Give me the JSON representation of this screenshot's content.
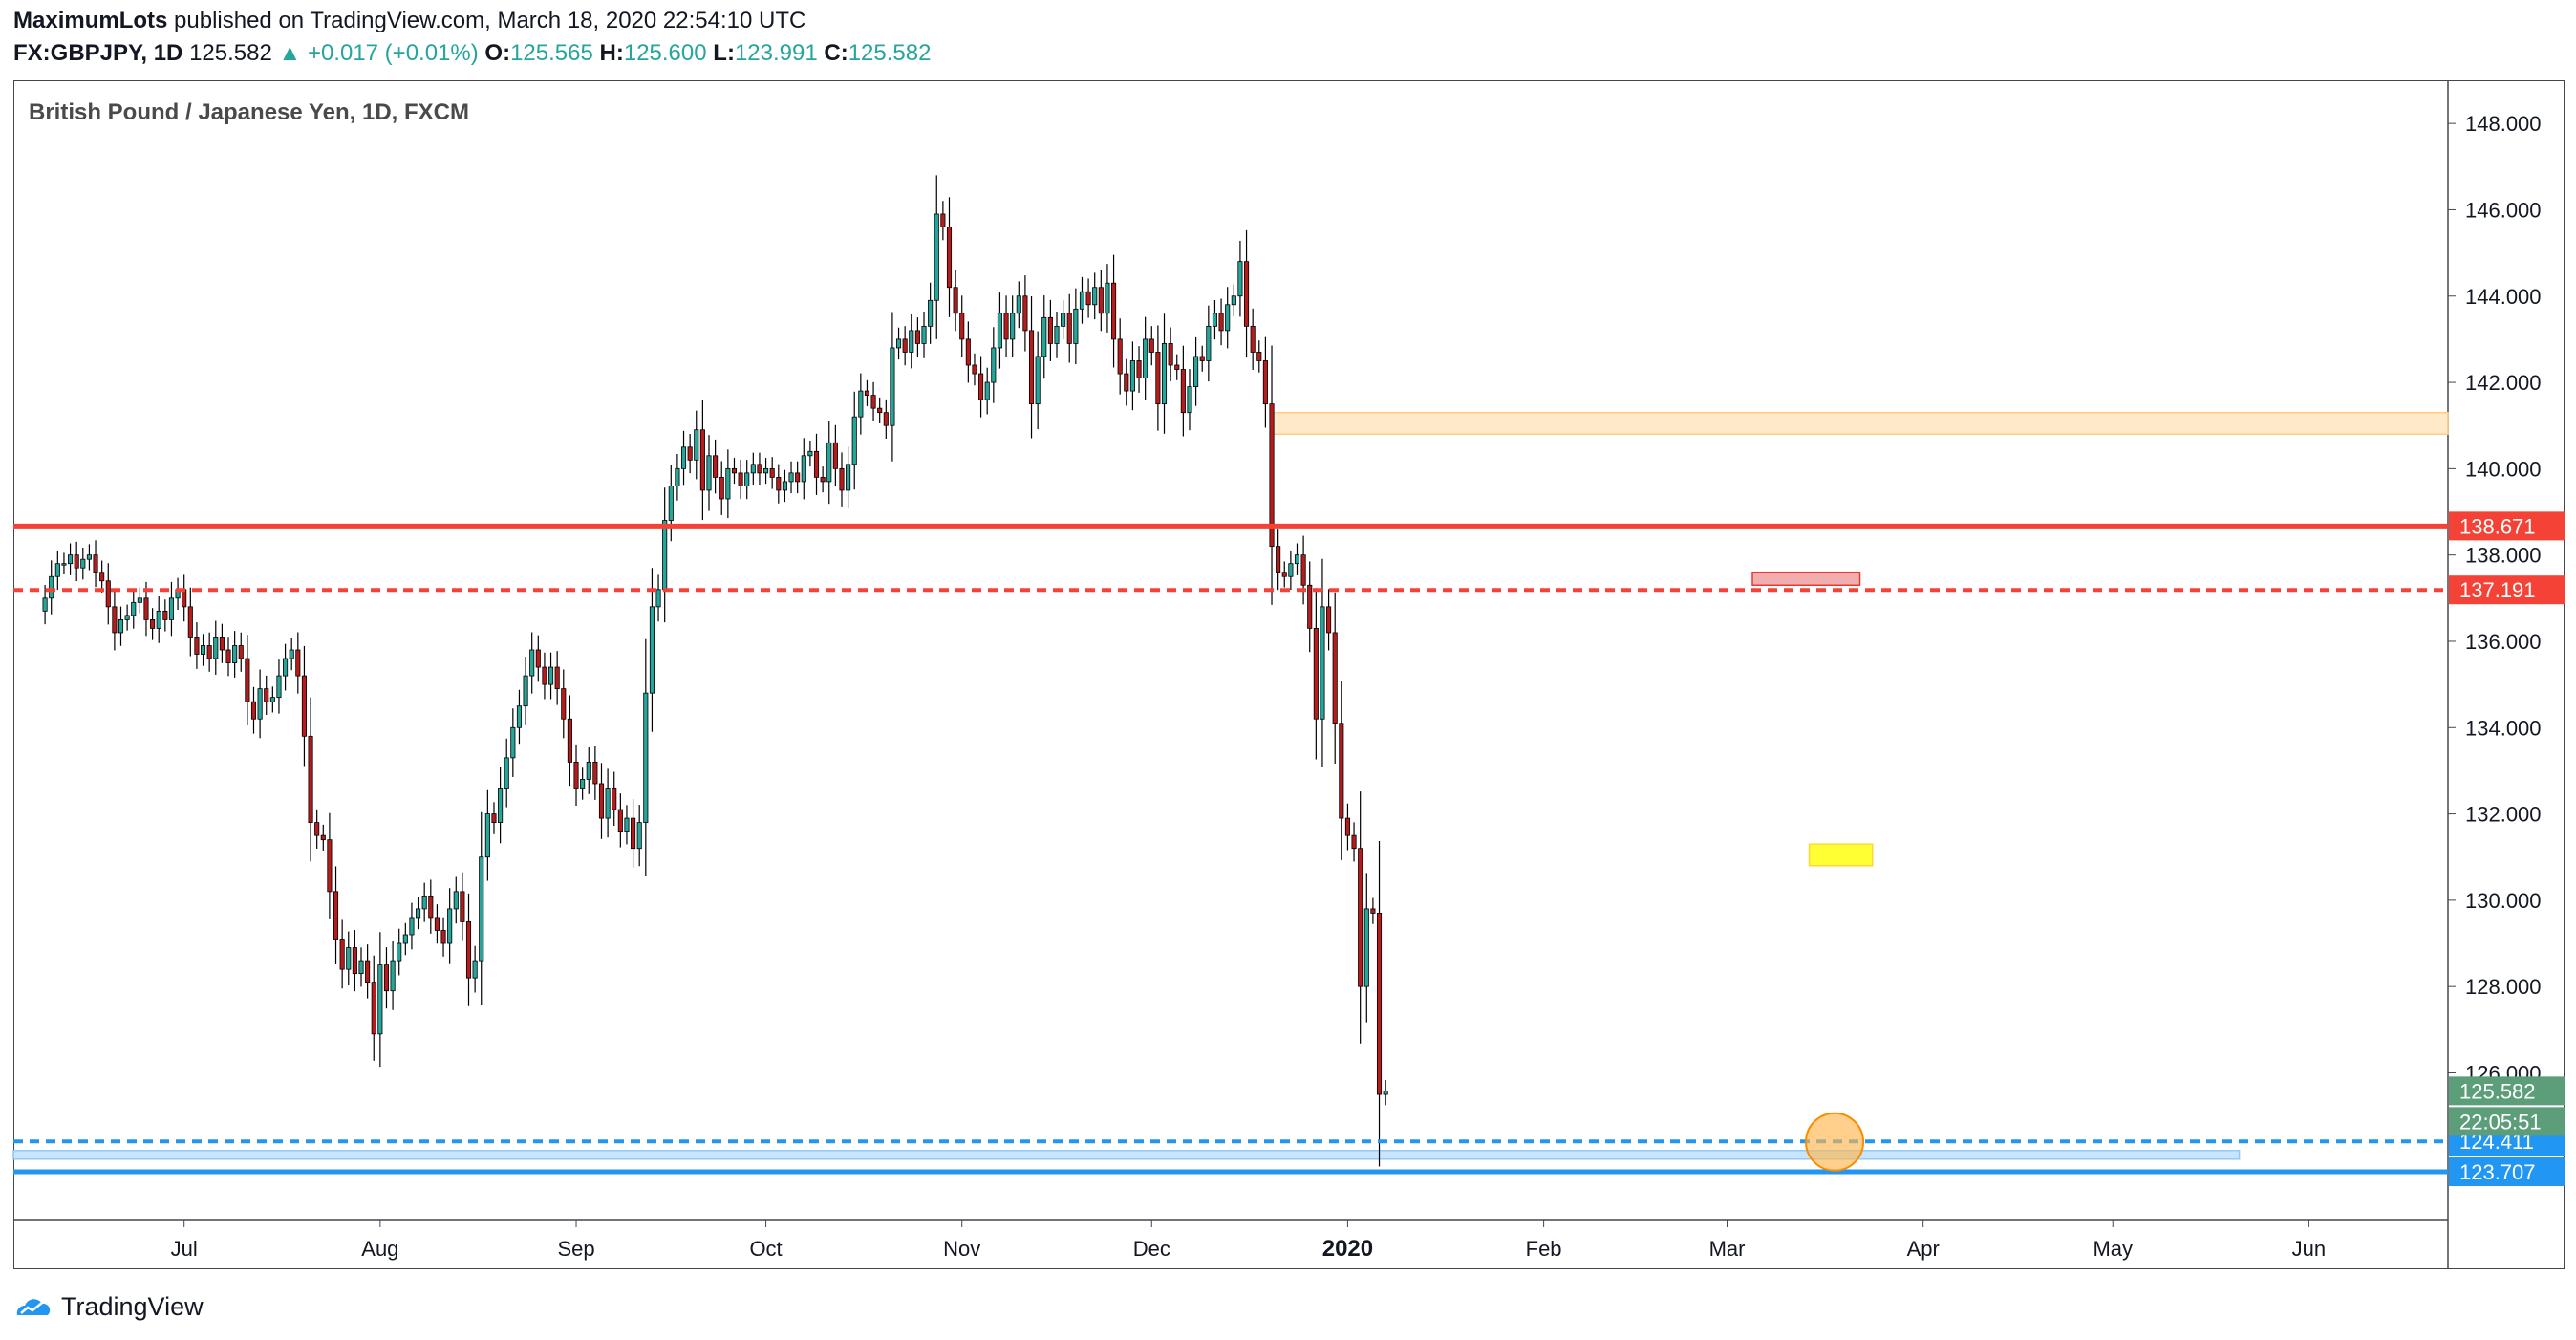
{
  "header": {
    "author": "MaximumLots",
    "published_text": "published on TradingView.com, March 18, 2020 22:54:10 UTC",
    "symbol": "FX:GBPJPY, 1D",
    "last": "125.582",
    "change": "+0.017 (+0.01%)",
    "o_label": "O:",
    "o": "125.565",
    "h_label": "H:",
    "h": "125.600",
    "l_label": "L:",
    "l": "123.991",
    "c_label": "C:",
    "c": "125.582"
  },
  "chart_title": "British Pound / Japanese Yen, 1D, FXCM",
  "footer": {
    "brand": "TradingView",
    "logo_icon": "tradingview-logo-icon"
  },
  "colors": {
    "up": "#26a69a",
    "down": "#b71c1c",
    "wick": "#000000",
    "red_line": "#f44336",
    "blue_line": "#2196f3",
    "zone_orange": "#ffe0b2",
    "zone_yellow": "#ffff00",
    "zone_red": "#ef9a9a",
    "circle": "#ffb74d"
  },
  "chart_data": {
    "type": "candlestick",
    "ylim": [
      122.6,
      149.0
    ],
    "y_ticks": [
      "148.000",
      "146.000",
      "144.000",
      "142.000",
      "140.000",
      "138.000",
      "136.000",
      "134.000",
      "132.000",
      "130.000",
      "128.000",
      "126.000"
    ],
    "x_ticks": [
      {
        "label": "Jul",
        "day": 22
      },
      {
        "label": "Aug",
        "day": 53
      },
      {
        "label": "Sep",
        "day": 84
      },
      {
        "label": "Oct",
        "day": 114
      },
      {
        "label": "Nov",
        "day": 145
      },
      {
        "label": "Dec",
        "day": 175
      },
      {
        "label": "2020",
        "day": 206,
        "bold": true
      },
      {
        "label": "Feb",
        "day": 237
      },
      {
        "label": "Mar",
        "day": 266
      },
      {
        "label": "Apr",
        "day": 297
      },
      {
        "label": "May",
        "day": 327
      },
      {
        "label": "Jun",
        "day": 358
      }
    ],
    "start_date": "2019-06-09",
    "xlim_days": [
      -5,
      380
    ],
    "closes": [
      137.0,
      137.5,
      137.8,
      137.8,
      138.0,
      137.7,
      137.9,
      138.0,
      137.6,
      137.4,
      136.8,
      136.2,
      136.5,
      136.6,
      136.9,
      137.0,
      136.5,
      136.3,
      136.7,
      136.5,
      137.0,
      137.2,
      136.8,
      136.1,
      135.7,
      135.9,
      135.6,
      136.1,
      135.8,
      135.5,
      135.9,
      135.6,
      134.6,
      134.2,
      134.9,
      134.6,
      134.7,
      135.2,
      135.6,
      135.8,
      135.2,
      133.8,
      131.8,
      131.5,
      131.4,
      130.2,
      129.1,
      128.4,
      128.9,
      128.3,
      128.6,
      128.1,
      126.9,
      128.5,
      127.9,
      128.6,
      129.0,
      129.2,
      129.6,
      129.8,
      130.1,
      129.6,
      129.3,
      129.0,
      129.8,
      130.2,
      129.5,
      128.2,
      128.6,
      131.0,
      132.0,
      131.8,
      132.6,
      133.3,
      134.0,
      134.5,
      135.2,
      135.8,
      135.4,
      135.0,
      135.4,
      134.9,
      134.2,
      133.2,
      132.6,
      132.8,
      133.2,
      132.7,
      131.9,
      132.6,
      132.1,
      131.6,
      131.9,
      131.2,
      131.8,
      134.8,
      136.8,
      137.2,
      138.8,
      139.6,
      140.0,
      140.5,
      140.2,
      140.9,
      139.5,
      140.3,
      139.8,
      139.3,
      140.0,
      139.9,
      139.6,
      139.9,
      140.1,
      139.9,
      140.0,
      139.8,
      139.5,
      139.7,
      139.9,
      139.7,
      140.3,
      140.4,
      139.8,
      139.7,
      140.6,
      140.0,
      139.5,
      140.1,
      141.2,
      141.8,
      141.7,
      141.4,
      141.3,
      141.0,
      142.8,
      143.0,
      142.7,
      143.2,
      142.9,
      143.3,
      143.9,
      145.9,
      145.6,
      144.2,
      143.6,
      143.0,
      142.4,
      142.2,
      141.6,
      142.0,
      142.8,
      143.6,
      143.0,
      143.6,
      144.0,
      143.2,
      141.5,
      142.6,
      143.5,
      142.9,
      143.3,
      143.6,
      142.9,
      143.7,
      144.1,
      143.8,
      144.2,
      143.6,
      144.3,
      143.0,
      142.2,
      141.8,
      142.5,
      142.1,
      143.0,
      142.7,
      141.5,
      142.9,
      142.4,
      142.3,
      141.3,
      141.9,
      142.6,
      142.5,
      143.3,
      143.6,
      143.2,
      143.8,
      144.0,
      144.8,
      143.3,
      142.7,
      142.5,
      141.5,
      138.2,
      137.6,
      137.5,
      137.8,
      138.0,
      137.3,
      136.3,
      134.2,
      136.8,
      136.2,
      134.1,
      131.9,
      131.5,
      131.2,
      128.0,
      129.8,
      129.7,
      125.5,
      125.582
    ],
    "price_lines": [
      {
        "label": "138.671",
        "value": 138.671,
        "style": "solid",
        "color": "#f44336"
      },
      {
        "label": "137.191",
        "value": 137.191,
        "style": "dashed",
        "color": "#f44336"
      },
      {
        "label": "124.411",
        "value": 124.411,
        "style": "dashed",
        "color": "#2196f3"
      },
      {
        "label": "123.707",
        "value": 123.707,
        "style": "solid",
        "color": "#2196f3"
      }
    ],
    "last_price": {
      "label": "125.582",
      "value": 125.582,
      "countdown": "22:05:51"
    },
    "zones": [
      {
        "name": "support-zone-orange",
        "from_day": 194,
        "to_day": 380,
        "y_top": 141.3,
        "y_bottom": 140.8,
        "color": "#ffe0b2"
      },
      {
        "name": "resistance-zone-red",
        "from_day": 270,
        "to_day": 287,
        "y_top": 137.6,
        "y_bottom": 137.3,
        "color": "#ef9a9a"
      },
      {
        "name": "resistance-zone-yellow",
        "from_day": 279,
        "to_day": 289,
        "y_top": 131.3,
        "y_bottom": 130.8,
        "color": "#ffff00"
      },
      {
        "name": "support-zone-blue",
        "from_day": -5,
        "to_day": 347,
        "y_top": 124.2,
        "y_bottom": 124.0,
        "color": "#bbdefb"
      }
    ],
    "highlight_circle": {
      "day": 283,
      "value": 124.4
    }
  }
}
